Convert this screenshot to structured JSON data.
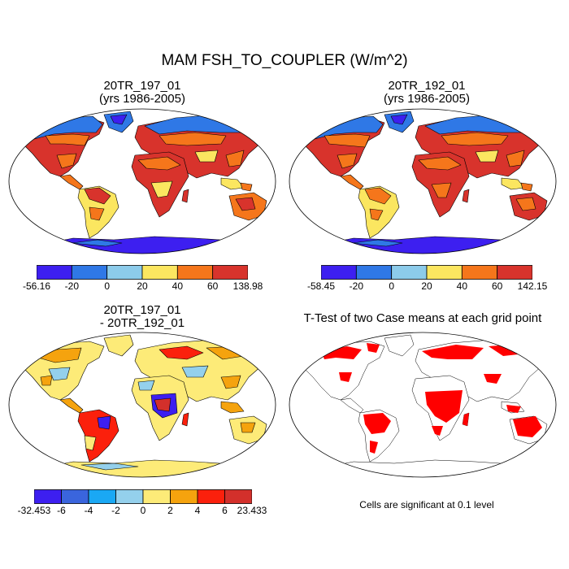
{
  "title": "MAM FSH_TO_COUPLER (W/m^2)",
  "panels": {
    "top_left": {
      "line1": "20TR_197_01",
      "line2": "(yrs 1986-2005)"
    },
    "top_right": {
      "line1": "20TR_192_01",
      "line2": "(yrs 1986-2005)"
    },
    "bottom_left": {
      "line1": "20TR_197_01",
      "line2": "- 20TR_192_01"
    },
    "bottom_right": {
      "line1": "T-Test of two Case means at each grid point"
    }
  },
  "colorbars": {
    "top_left": {
      "labels": [
        "-56.16",
        "-20",
        "0",
        "20",
        "40",
        "60",
        "138.98"
      ],
      "colors": [
        "#3d1ff0",
        "#2f78e6",
        "#8ccbea",
        "#fbe660",
        "#f5761b",
        "#d8332c"
      ]
    },
    "top_right": {
      "labels": [
        "-58.45",
        "-20",
        "0",
        "20",
        "40",
        "60",
        "142.15"
      ],
      "colors": [
        "#3d1ff0",
        "#2f78e6",
        "#8ccbea",
        "#fbe660",
        "#f5761b",
        "#d8332c"
      ]
    },
    "bottom_left": {
      "labels": [
        "-32.453",
        "-6",
        "-4",
        "-2",
        "0",
        "2",
        "4",
        "6",
        "23.433"
      ],
      "colors": [
        "#3d1ff0",
        "#3a65dd",
        "#1aa8f4",
        "#94d0ec",
        "#fdeb78",
        "#f5a30e",
        "#fb200c",
        "#d3302b"
      ]
    }
  },
  "significance_note": "Cells are significant at 0.1 level"
}
